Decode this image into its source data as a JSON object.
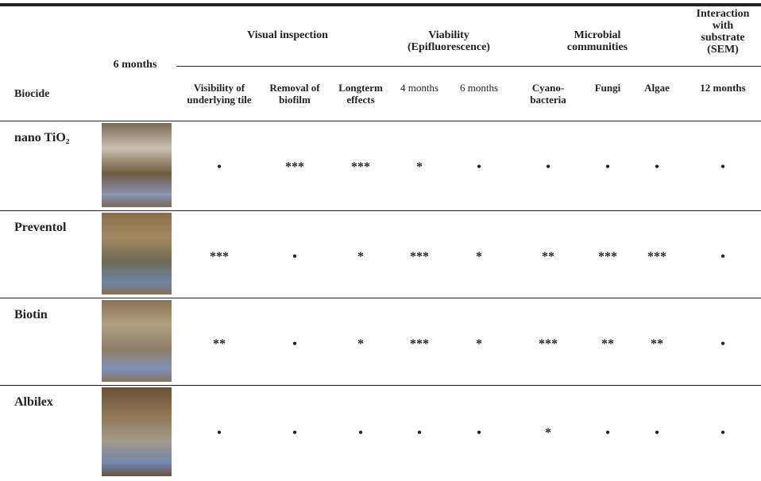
{
  "header": {
    "image_column": "6 months",
    "groups": [
      "Visual inspection",
      "Viability (Epifluorescence)",
      "Microbial communities",
      "Interaction with substrate (SEM)"
    ],
    "columns": [
      "Biocide",
      "Visibility of underlying tile",
      "Removal of biofilm",
      "Longterm effects",
      "4 months",
      "6 months",
      "Cyano-bacteria",
      "Fungi",
      "Algae",
      "12 months"
    ]
  },
  "rows": [
    {
      "biocide": "nano TiO₂",
      "cells": [
        "•",
        "***",
        "***",
        "*",
        "•",
        "•",
        "•",
        "•",
        "•"
      ]
    },
    {
      "biocide": "Preventol",
      "cells": [
        "***",
        "•",
        "*",
        "***",
        "*",
        "**",
        "***",
        "***",
        "•"
      ]
    },
    {
      "biocide": "Biotin",
      "cells": [
        "**",
        "•",
        "*",
        "***",
        "*",
        "***",
        "**",
        "**",
        "•"
      ]
    },
    {
      "biocide": "Albilex",
      "cells": [
        "•",
        "•",
        "•",
        "•",
        "•",
        "*",
        "•",
        "•",
        "•"
      ]
    }
  ]
}
